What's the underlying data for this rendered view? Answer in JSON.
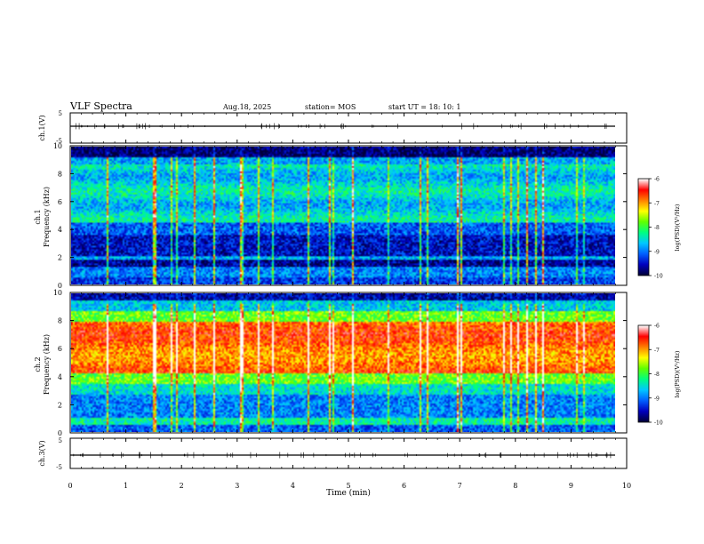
{
  "header": {
    "title": "VLF Spectra",
    "date": "Aug.18, 2025",
    "station": "station= MOS",
    "start": "start  UT =   18: 10: 1"
  },
  "chart_data": [
    {
      "type": "line",
      "name": "ch1-waveform",
      "ylabel": "ch.1(V)",
      "ylim": [
        -5,
        5
      ],
      "yticks": [
        5,
        -5
      ],
      "series": [
        {
          "name": "ch.1",
          "values": [
            0
          ]
        }
      ]
    },
    {
      "type": "heatmap",
      "name": "ch1-spectrogram",
      "ylabel": "ch.1\nFrequency (kHz)",
      "ylim": [
        0,
        10
      ],
      "yticks": [
        0,
        2,
        4,
        6,
        8,
        10
      ],
      "colorbar": {
        "label": "log(PSD)(V²/Hz)",
        "range": [
          -10,
          -6
        ],
        "ticks": [
          -6,
          -7,
          -8,
          -9,
          -10
        ]
      }
    },
    {
      "type": "heatmap",
      "name": "ch2-spectrogram",
      "ylabel": "ch.2\nFrequency (kHz)",
      "ylim": [
        0,
        10
      ],
      "yticks": [
        0,
        2,
        4,
        6,
        8,
        10
      ],
      "colorbar": {
        "label": "log(PSD)(V²/Hz)",
        "range": [
          -10,
          -6
        ],
        "ticks": [
          -6,
          -7,
          -8,
          -9,
          -10
        ]
      }
    },
    {
      "type": "line",
      "name": "ch3-waveform",
      "ylabel": "ch.3(V)",
      "ylim": [
        -5,
        5
      ],
      "yticks": [
        5,
        -5
      ],
      "series": [
        {
          "name": "ch.3",
          "values": [
            0
          ]
        }
      ]
    }
  ],
  "xaxis": {
    "label": "Time  (min)",
    "range": [
      0,
      10
    ],
    "ticks": [
      0,
      1,
      2,
      3,
      4,
      5,
      6,
      7,
      8,
      9,
      10
    ]
  },
  "colors": {
    "scale": [
      "#00003a",
      "#0000c0",
      "#0060ff",
      "#00c8ff",
      "#00ff80",
      "#60ff00",
      "#ffff00",
      "#ff8000",
      "#ff0000",
      "#ffffff"
    ]
  }
}
